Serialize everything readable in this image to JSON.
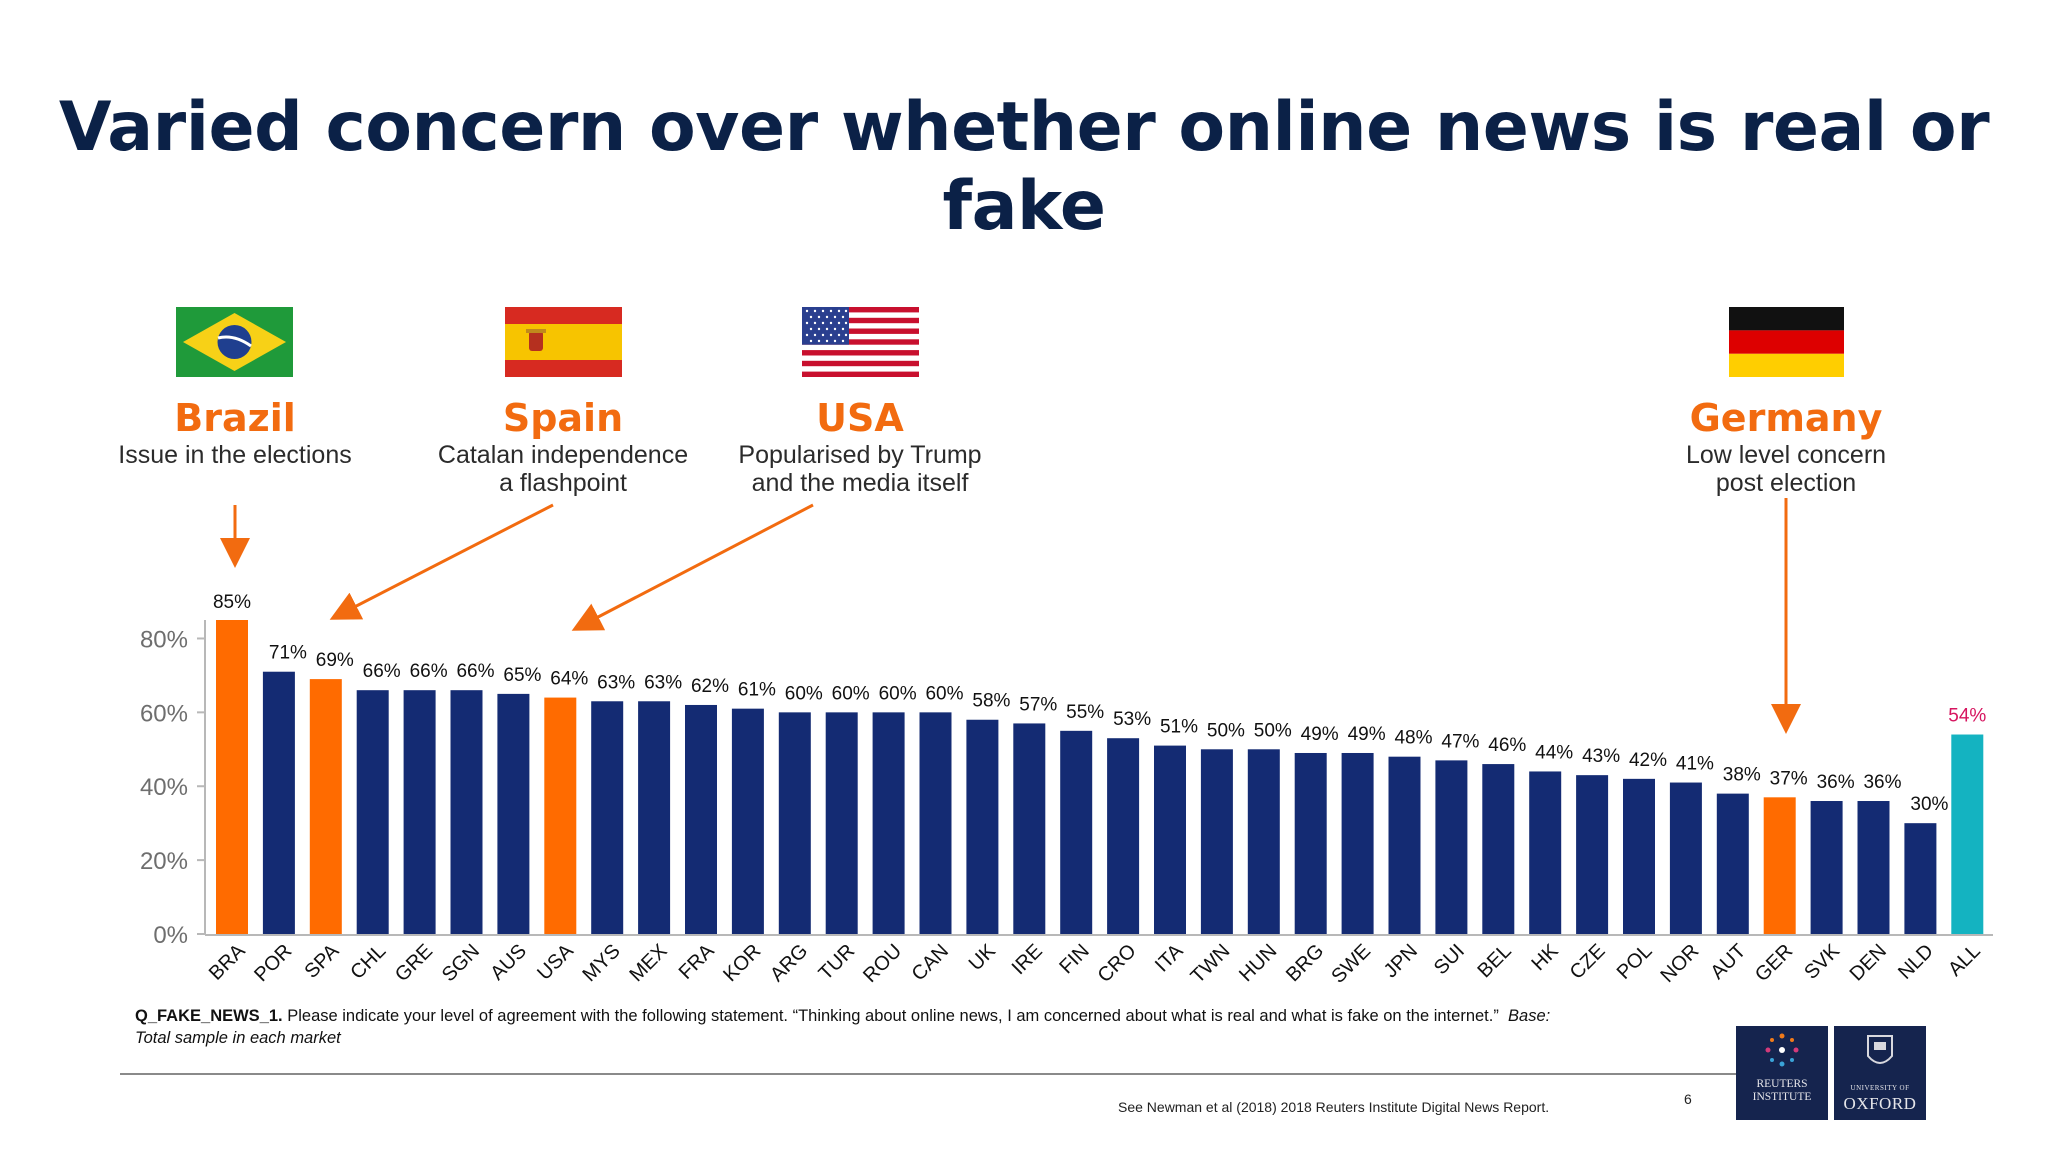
{
  "title": "Varied concern over whether online news is real or fake",
  "callouts": {
    "brazil": {
      "name": "Brazil",
      "line1": "Issue  in the elections",
      "line2": ""
    },
    "spain": {
      "name": "Spain",
      "line1": "Catalan independence",
      "line2": "a flashpoint"
    },
    "usa": {
      "name": "USA",
      "line1": "Popularised by Trump",
      "line2": "and the media itself"
    },
    "germany": {
      "name": "Germany",
      "line1": "Low level concern",
      "line2": "post election"
    }
  },
  "colors": {
    "default_bar": "#142b73",
    "highlight_bar": "#ff6b00",
    "average_bar": "#14b3c1",
    "average_label": "#d6145f",
    "arrow": "#f26b10",
    "axis_text": "#6e6e6e"
  },
  "question": {
    "id": "Q_FAKE_NEWS_1.",
    "text": " Please indicate your level of agreement with the following statement. “Thinking about online news, I am concerned about what is real and what is fake on the internet.”",
    "base": "Base: Total sample in each market"
  },
  "source": "See Newman et al (2018) 2018 Reuters Institute Digital News Report.",
  "page_number": "6",
  "logos": {
    "reuters": {
      "line1": "REUTERS",
      "line2": "INSTITUTE"
    },
    "oxford": {
      "line1": "UNIVERSITY OF",
      "line2": "OXFORD"
    }
  },
  "chart_data": {
    "type": "bar",
    "title": "",
    "xlabel": "",
    "ylabel": "",
    "ylim": [
      0,
      85
    ],
    "yticks": [
      0,
      20,
      40,
      60,
      80
    ],
    "ytick_labels": [
      "0%",
      "20%",
      "40%",
      "60%",
      "80%"
    ],
    "grid": false,
    "categories": [
      "BRA",
      "POR",
      "SPA",
      "CHL",
      "GRE",
      "SGN",
      "AUS",
      "USA",
      "MYS",
      "MEX",
      "FRA",
      "KOR",
      "ARG",
      "TUR",
      "ROU",
      "CAN",
      "UK",
      "IRE",
      "FIN",
      "CRO",
      "ITA",
      "TWN",
      "HUN",
      "BRG",
      "SWE",
      "JPN",
      "SUI",
      "BEL",
      "HK",
      "CZE",
      "POL",
      "NOR",
      "AUT",
      "GER",
      "SVK",
      "DEN",
      "NLD",
      "ALL"
    ],
    "values": [
      85,
      71,
      69,
      66,
      66,
      66,
      65,
      64,
      63,
      63,
      62,
      61,
      60,
      60,
      60,
      60,
      58,
      57,
      55,
      53,
      51,
      50,
      50,
      49,
      49,
      48,
      47,
      46,
      44,
      43,
      42,
      41,
      38,
      37,
      36,
      36,
      30,
      54
    ],
    "value_labels": [
      "85%",
      "71%",
      "69%",
      "66%",
      "66%",
      "66%",
      "65%",
      "64%",
      "63%",
      "63%",
      "62%",
      "61%",
      "60%",
      "60%",
      "60%",
      "60%",
      "58%",
      "57%",
      "55%",
      "53%",
      "51%",
      "50%",
      "50%",
      "49%",
      "49%",
      "48%",
      "47%",
      "46%",
      "44%",
      "43%",
      "42%",
      "41%",
      "38%",
      "37%",
      "36%",
      "36%",
      "30%",
      "54%"
    ],
    "highlighted": [
      "BRA",
      "SPA",
      "USA",
      "GER"
    ],
    "average_category": "ALL"
  }
}
